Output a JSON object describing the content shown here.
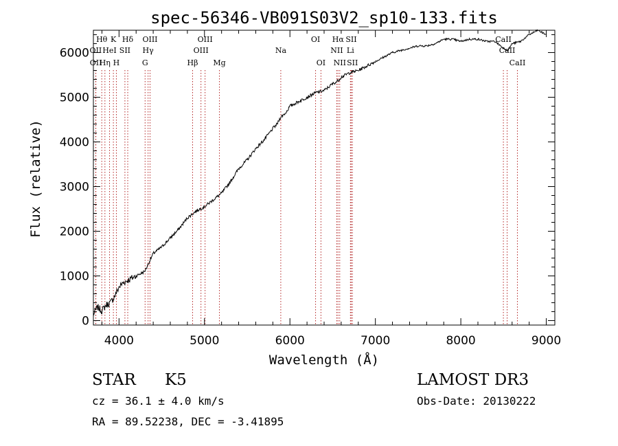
{
  "chart_data": {
    "type": "line",
    "title": "spec-56346-VB091S03V2_sp10-133.fits",
    "xlabel": "Wavelength (Å)",
    "ylabel": "Flux (relative)",
    "xlim": [
      3700,
      9100
    ],
    "ylim": [
      -100,
      6500
    ],
    "xticks": [
      4000,
      5000,
      6000,
      7000,
      8000,
      9000
    ],
    "yticks": [
      0,
      1000,
      2000,
      3000,
      4000,
      5000,
      6000
    ],
    "series": [
      {
        "name": "flux",
        "x": [
          3700,
          3750,
          3800,
          3850,
          3900,
          3950,
          4000,
          4050,
          4100,
          4150,
          4200,
          4250,
          4300,
          4350,
          4400,
          4500,
          4600,
          4700,
          4800,
          4900,
          5000,
          5100,
          5200,
          5300,
          5400,
          5500,
          5600,
          5700,
          5800,
          5850,
          5890,
          5950,
          6000,
          6100,
          6200,
          6300,
          6400,
          6500,
          6550,
          6600,
          6700,
          6800,
          6900,
          7000,
          7100,
          7200,
          7300,
          7400,
          7500,
          7600,
          7700,
          7800,
          7900,
          8000,
          8100,
          8200,
          8300,
          8400,
          8500,
          8550,
          8600,
          8700,
          8800,
          8900,
          9000
        ],
        "y": [
          150,
          300,
          220,
          350,
          400,
          550,
          750,
          850,
          900,
          950,
          1000,
          1050,
          1100,
          1300,
          1500,
          1650,
          1850,
          2050,
          2300,
          2450,
          2550,
          2700,
          2850,
          3100,
          3400,
          3600,
          3850,
          4050,
          4300,
          4400,
          4550,
          4650,
          4800,
          4900,
          5000,
          5100,
          5150,
          5300,
          5350,
          5450,
          5550,
          5600,
          5700,
          5800,
          5900,
          6000,
          6050,
          6100,
          6150,
          6150,
          6200,
          6300,
          6300,
          6250,
          6300,
          6300,
          6250,
          6250,
          6100,
          6050,
          6200,
          6250,
          6400,
          6500,
          6400
        ]
      }
    ],
    "line_markers": [
      {
        "name": "Hθ",
        "wavelength": 3798,
        "row": 1
      },
      {
        "name": "OII",
        "wavelength": 3727,
        "row": 2
      },
      {
        "name": "OII",
        "wavelength": 3729,
        "row": 3
      },
      {
        "name": "Hη",
        "wavelength": 3835,
        "row": 3
      },
      {
        "name": "K",
        "wavelength": 3934,
        "row": 1
      },
      {
        "name": "HeI",
        "wavelength": 3889,
        "row": 2
      },
      {
        "name": "SII",
        "wavelength": 4069,
        "row": 2
      },
      {
        "name": "H",
        "wavelength": 3969,
        "row": 3
      },
      {
        "name": "Hδ",
        "wavelength": 4102,
        "row": 1
      },
      {
        "name": "OIII",
        "wavelength": 4363,
        "row": 1
      },
      {
        "name": "Hγ",
        "wavelength": 4340,
        "row": 2
      },
      {
        "name": "G",
        "wavelength": 4305,
        "row": 3
      },
      {
        "name": "Hβ",
        "wavelength": 4861,
        "row": 3
      },
      {
        "name": "OIII",
        "wavelength": 5007,
        "row": 1
      },
      {
        "name": "OIII",
        "wavelength": 4959,
        "row": 2
      },
      {
        "name": "Mg",
        "wavelength": 5175,
        "row": 3
      },
      {
        "name": "Na",
        "wavelength": 5893,
        "row": 2
      },
      {
        "name": "OI",
        "wavelength": 6300,
        "row": 1
      },
      {
        "name": "OI",
        "wavelength": 6363,
        "row": 3
      },
      {
        "name": "Hα",
        "wavelength": 6563,
        "row": 1
      },
      {
        "name": "SII",
        "wavelength": 6717,
        "row": 1
      },
      {
        "name": "NII",
        "wavelength": 6548,
        "row": 2
      },
      {
        "name": "Li",
        "wavelength": 6708,
        "row": 2
      },
      {
        "name": "NII",
        "wavelength": 6583,
        "row": 3
      },
      {
        "name": "SII",
        "wavelength": 6731,
        "row": 3
      },
      {
        "name": "CaII",
        "wavelength": 8498,
        "row": 1
      },
      {
        "name": "CaII",
        "wavelength": 8542,
        "row": 2
      },
      {
        "name": "CaII",
        "wavelength": 8662,
        "row": 3
      }
    ]
  },
  "info": {
    "class_label": "STAR",
    "subclass": "K5",
    "survey": "LAMOST DR3",
    "cz": "cz = 36.1 ± 4.0 km/s",
    "obs_date": "Obs-Date: 20130222",
    "radec": "RA =  89.52238, DEC =  -3.41895"
  },
  "colors": {
    "line": "#000000",
    "marker": "#b22222",
    "background": "#ffffff"
  }
}
